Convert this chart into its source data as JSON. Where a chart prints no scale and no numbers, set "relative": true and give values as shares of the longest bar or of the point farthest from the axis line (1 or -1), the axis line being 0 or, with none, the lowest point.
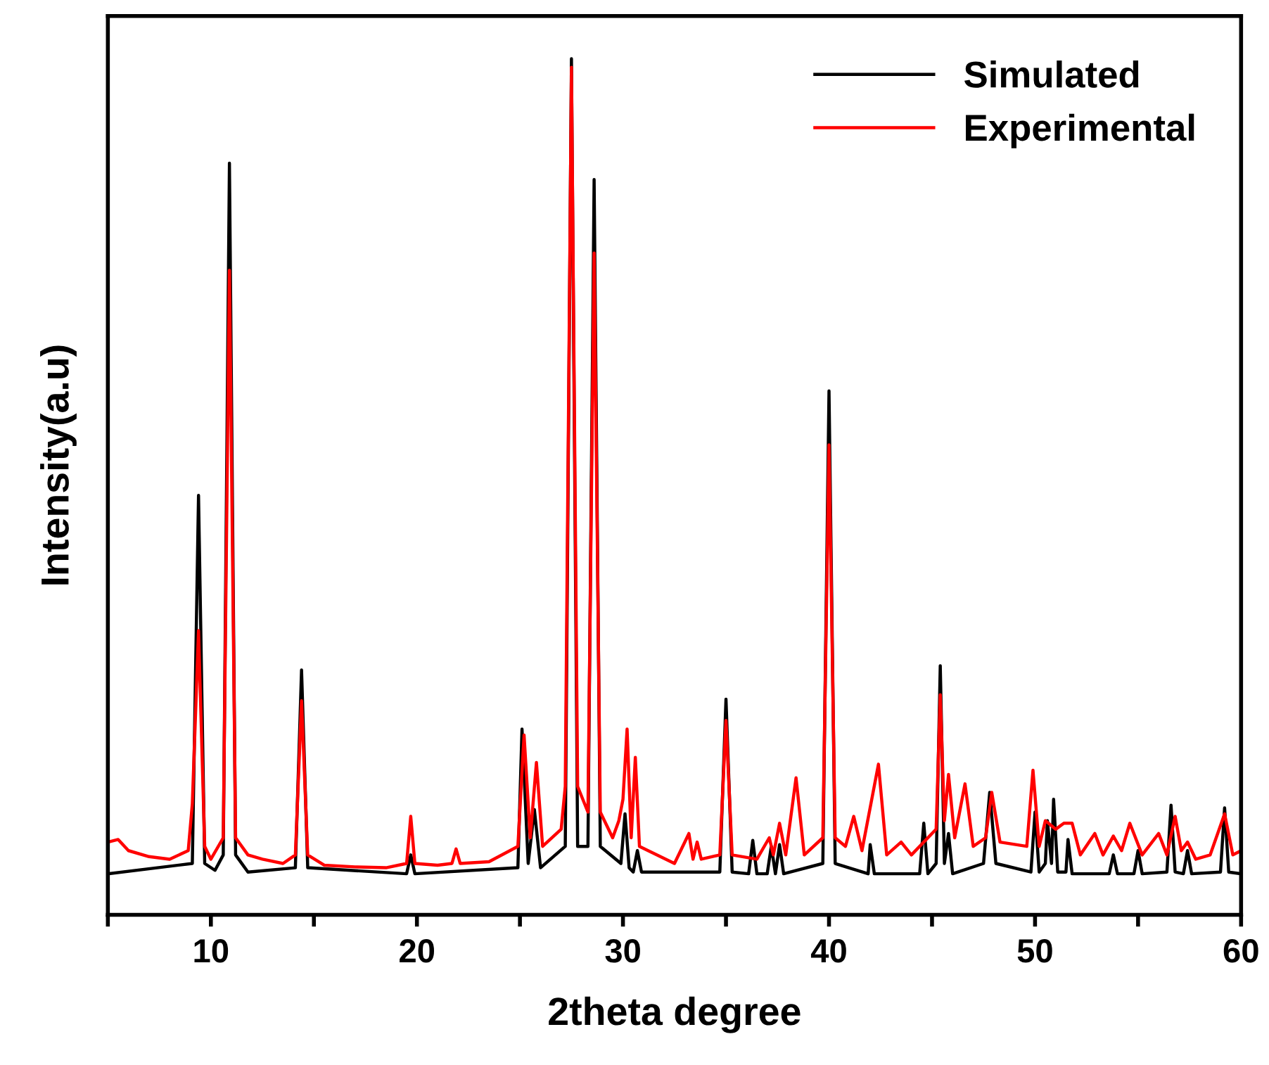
{
  "chart_data": {
    "type": "line",
    "relative": true,
    "xlabel": "2theta degree",
    "ylabel": "Intensity(a.u)",
    "xlim": [
      5,
      60
    ],
    "xticks": [
      {
        "value": 5,
        "label": null
      },
      10,
      {
        "value": 15,
        "label": null
      },
      20,
      {
        "value": 25,
        "label": null
      },
      30,
      {
        "value": 35,
        "label": null
      },
      40,
      {
        "value": 45,
        "label": null
      },
      50,
      {
        "value": 55,
        "label": null
      },
      60
    ],
    "legend": "top right",
    "grid": false,
    "series": [
      {
        "name": "Simulated",
        "color": "#000000",
        "x": [
          5,
          9.1,
          9.4,
          9.7,
          10.2,
          10.6,
          10.9,
          11.2,
          11.8,
          14.1,
          14.4,
          14.7,
          19.5,
          19.7,
          19.9,
          24.9,
          25.1,
          25.4,
          25.7,
          26.0,
          27.2,
          27.5,
          27.8,
          28.3,
          28.6,
          28.9,
          29.9,
          30.1,
          30.3,
          30.5,
          30.7,
          30.9,
          34.7,
          35.0,
          35.3,
          36.1,
          36.3,
          36.5,
          37.0,
          37.2,
          37.4,
          37.6,
          37.8,
          39.7,
          40.0,
          40.3,
          41.9,
          42.0,
          42.2,
          44.4,
          44.6,
          44.8,
          45.2,
          45.4,
          45.6,
          45.8,
          46.0,
          47.5,
          47.8,
          48.1,
          49.8,
          50.0,
          50.2,
          50.5,
          50.6,
          50.8,
          50.9,
          51.1,
          51.5,
          51.6,
          51.8,
          53.6,
          53.8,
          54.0,
          54.8,
          55.0,
          55.2,
          56.4,
          56.6,
          56.8,
          57.2,
          57.4,
          57.6,
          59.0,
          59.2,
          59.4,
          60
        ],
        "values": [
          0.048,
          0.06,
          0.49,
          0.06,
          0.052,
          0.07,
          0.878,
          0.07,
          0.05,
          0.055,
          0.286,
          0.055,
          0.048,
          0.07,
          0.048,
          0.055,
          0.217,
          0.06,
          0.123,
          0.055,
          0.08,
          1.0,
          0.08,
          0.08,
          0.859,
          0.08,
          0.06,
          0.118,
          0.055,
          0.05,
          0.075,
          0.05,
          0.05,
          0.252,
          0.05,
          0.048,
          0.087,
          0.048,
          0.048,
          0.08,
          0.048,
          0.082,
          0.048,
          0.06,
          0.612,
          0.06,
          0.048,
          0.082,
          0.048,
          0.048,
          0.107,
          0.048,
          0.06,
          0.291,
          0.06,
          0.095,
          0.048,
          0.06,
          0.143,
          0.06,
          0.05,
          0.12,
          0.05,
          0.06,
          0.11,
          0.06,
          0.135,
          0.05,
          0.05,
          0.088,
          0.048,
          0.048,
          0.07,
          0.048,
          0.048,
          0.075,
          0.048,
          0.05,
          0.128,
          0.05,
          0.048,
          0.075,
          0.048,
          0.05,
          0.125,
          0.05,
          0.048
        ]
      },
      {
        "name": "Experimental",
        "color": "#ff0000",
        "x": [
          5,
          5.5,
          6,
          7,
          8,
          8.9,
          9.1,
          9.4,
          9.7,
          10.0,
          10.6,
          10.9,
          11.2,
          11.8,
          12.5,
          13.5,
          14.1,
          14.4,
          14.7,
          15.5,
          17,
          18.5,
          19.5,
          19.7,
          19.9,
          21,
          21.7,
          21.9,
          22.1,
          23.5,
          24.9,
          25.2,
          25.5,
          25.8,
          26.1,
          27.0,
          27.2,
          27.5,
          27.8,
          28.3,
          28.6,
          28.9,
          29.5,
          29.8,
          30.0,
          30.2,
          30.4,
          30.6,
          30.8,
          32.5,
          33.2,
          33.4,
          33.6,
          33.8,
          34.7,
          35.0,
          35.3,
          36.5,
          37.1,
          37.3,
          37.6,
          37.9,
          38.4,
          38.8,
          39.7,
          40.0,
          40.3,
          40.8,
          41.2,
          41.6,
          42.4,
          42.8,
          43.5,
          44.0,
          45.2,
          45.4,
          45.6,
          45.8,
          46.1,
          46.6,
          47.0,
          47.6,
          47.9,
          48.3,
          49.6,
          49.9,
          50.2,
          50.5,
          51.0,
          51.4,
          51.8,
          52.2,
          52.9,
          53.3,
          53.8,
          54.2,
          54.6,
          55.2,
          56.0,
          56.4,
          56.8,
          57.1,
          57.4,
          57.8,
          58.5,
          59.2,
          59.6,
          60
        ],
        "values": [
          0.085,
          0.088,
          0.075,
          0.068,
          0.065,
          0.075,
          0.13,
          0.332,
          0.08,
          0.065,
          0.09,
          0.753,
          0.09,
          0.07,
          0.065,
          0.06,
          0.07,
          0.25,
          0.07,
          0.058,
          0.056,
          0.055,
          0.06,
          0.115,
          0.06,
          0.058,
          0.06,
          0.077,
          0.06,
          0.062,
          0.08,
          0.21,
          0.09,
          0.178,
          0.08,
          0.1,
          0.15,
          0.99,
          0.15,
          0.12,
          0.773,
          0.12,
          0.09,
          0.11,
          0.135,
          0.217,
          0.09,
          0.184,
          0.08,
          0.06,
          0.095,
          0.065,
          0.085,
          0.065,
          0.07,
          0.227,
          0.07,
          0.065,
          0.09,
          0.07,
          0.107,
          0.07,
          0.16,
          0.07,
          0.09,
          0.549,
          0.09,
          0.08,
          0.115,
          0.075,
          0.176,
          0.07,
          0.085,
          0.07,
          0.1,
          0.257,
          0.11,
          0.164,
          0.09,
          0.153,
          0.08,
          0.09,
          0.143,
          0.085,
          0.08,
          0.169,
          0.08,
          0.11,
          0.1,
          0.107,
          0.107,
          0.07,
          0.095,
          0.07,
          0.092,
          0.075,
          0.107,
          0.07,
          0.095,
          0.07,
          0.115,
          0.075,
          0.085,
          0.065,
          0.07,
          0.118,
          0.07,
          0.075
        ]
      }
    ]
  }
}
